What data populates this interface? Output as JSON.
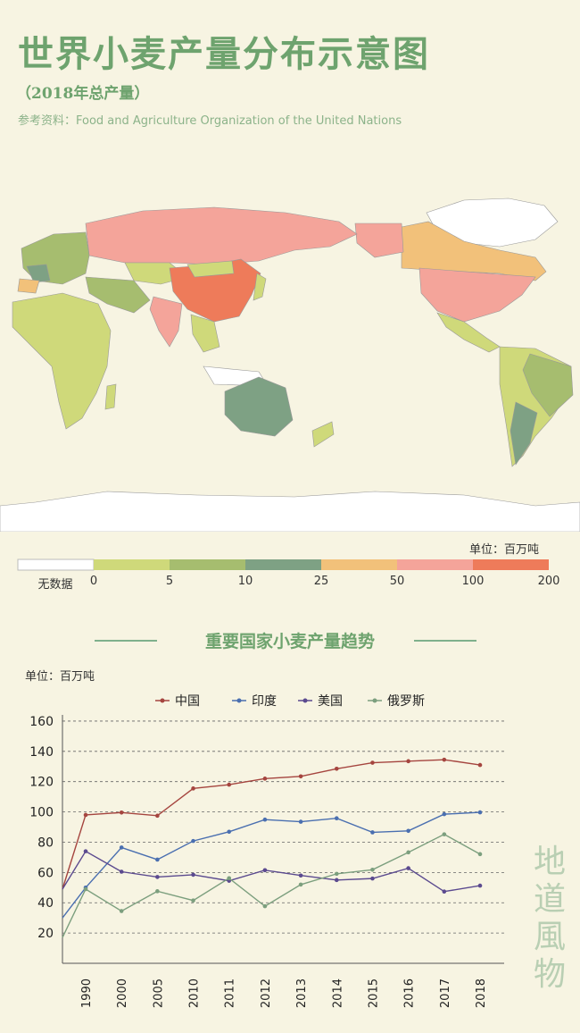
{
  "header": {
    "title": "世界小麦产量分布示意图",
    "subtitle": "（2018年总产量）",
    "source": "参考资料：Food and Agriculture Organization of the United Nations"
  },
  "map": {
    "unit": "单位：百万吨",
    "legend_no_data": "无数据",
    "legend_ticks": [
      "0",
      "5",
      "10",
      "25",
      "50",
      "100",
      "200"
    ],
    "legend_colors": [
      "#ffffff",
      "#cfd97a",
      "#a6bd6f",
      "#7ea184",
      "#f2c17a",
      "#f4a49a",
      "#ee7b5a"
    ]
  },
  "chart_section": {
    "title": "重要国家小麦产量趋势",
    "unit": "单位：百万吨"
  },
  "chart_data": {
    "type": "line",
    "categories": [
      "1990",
      "2000",
      "2005",
      "2010",
      "2011",
      "2012",
      "2013",
      "2014",
      "2015",
      "2016",
      "2017",
      "2018"
    ],
    "ylim": [
      0,
      170
    ],
    "yticks": [
      20,
      40,
      60,
      80,
      100,
      120,
      140,
      160
    ],
    "grid": true,
    "legend_position": "top",
    "series": [
      {
        "name": "中国",
        "color": "#a5453f",
        "start": 49,
        "values": [
          98,
          99.6,
          97.5,
          115.5,
          118,
          122,
          123.5,
          128.5,
          132.5,
          133.5,
          134.5,
          131
        ]
      },
      {
        "name": "印度",
        "color": "#4a6fb0",
        "start": 30,
        "values": [
          50,
          76.5,
          68.5,
          80.8,
          86.9,
          94.9,
          93.5,
          95.8,
          86.5,
          87.5,
          98.5,
          99.7
        ]
      },
      {
        "name": "美国",
        "color": "#5b4a8f",
        "start": 49,
        "values": [
          74,
          60.5,
          57,
          58.5,
          54.5,
          61.5,
          58,
          55,
          56,
          62.8,
          47.4,
          51.3
        ]
      },
      {
        "name": "俄罗斯",
        "color": "#7c9f7e",
        "start": 17,
        "values": [
          49,
          34.5,
          47.6,
          41.5,
          56.2,
          37.7,
          52,
          59.1,
          61.8,
          73.3,
          85.2,
          72.1
        ]
      }
    ]
  },
  "brand": [
    "地",
    "道",
    "風",
    "物"
  ]
}
